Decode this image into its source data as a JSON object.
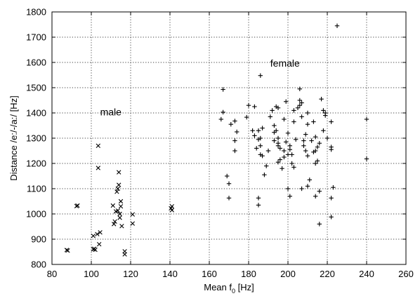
{
  "chart_data": {
    "type": "scatter",
    "title": "",
    "xlabel": "Mean f",
    "xlabel_sub": "0",
    "xlabel_unit": " [Hz]",
    "ylabel": "Distance /e:/-/a:/ [Hz]",
    "xlim": [
      80,
      260
    ],
    "ylim": [
      800,
      1800
    ],
    "xticks": [
      80,
      100,
      120,
      140,
      160,
      180,
      200,
      220,
      240,
      260
    ],
    "yticks": [
      800,
      900,
      1000,
      1100,
      1200,
      1300,
      1400,
      1500,
      1600,
      1700,
      1800
    ],
    "grid": true,
    "annotations": [
      {
        "text": "male",
        "x": 104.5,
        "y": 1390
      },
      {
        "text": "female",
        "x": 191,
        "y": 1583
      }
    ],
    "series": [
      {
        "name": "male",
        "marker": "x",
        "points": [
          [
            88,
            855
          ],
          [
            87.5,
            857
          ],
          [
            93,
            1033
          ],
          [
            92.5,
            1031
          ],
          [
            101,
            860
          ],
          [
            101.5,
            862
          ],
          [
            102,
            858
          ],
          [
            101,
            913
          ],
          [
            103,
            920
          ],
          [
            103.5,
            1270
          ],
          [
            103.5,
            1182
          ],
          [
            104,
            880
          ],
          [
            104.5,
            927
          ],
          [
            111,
            1033
          ],
          [
            111.5,
            960
          ],
          [
            112,
            970
          ],
          [
            112.5,
            1010
          ],
          [
            113,
            1088
          ],
          [
            113.5,
            1013
          ],
          [
            113.5,
            1100
          ],
          [
            114,
            1115
          ],
          [
            114,
            1165
          ],
          [
            114.5,
            1000
          ],
          [
            114.5,
            985
          ],
          [
            115,
            1050
          ],
          [
            115,
            1030
          ],
          [
            115.5,
            952
          ],
          [
            117,
            840
          ],
          [
            117,
            852
          ],
          [
            121,
            962
          ],
          [
            121,
            998
          ],
          [
            141,
            1030
          ],
          [
            141,
            1015
          ],
          [
            140.5,
            1022
          ]
        ]
      },
      {
        "name": "female",
        "marker": "+",
        "points": [
          [
            225,
            1745
          ],
          [
            186,
            1548
          ],
          [
            166,
            1375
          ],
          [
            167,
            1493
          ],
          [
            167,
            1403
          ],
          [
            169,
            1150
          ],
          [
            170,
            1120
          ],
          [
            170,
            1063
          ],
          [
            171,
            1355
          ],
          [
            173,
            1368
          ],
          [
            173,
            1290
          ],
          [
            173,
            1250
          ],
          [
            174,
            1325
          ],
          [
            179,
            1383
          ],
          [
            180,
            1430
          ],
          [
            182,
            1330
          ],
          [
            183,
            1425
          ],
          [
            183,
            1310
          ],
          [
            184,
            1260
          ],
          [
            185,
            1295
          ],
          [
            185,
            1330
          ],
          [
            185,
            1063
          ],
          [
            185,
            1035
          ],
          [
            186,
            1300
          ],
          [
            186,
            1270
          ],
          [
            186,
            1235
          ],
          [
            187,
            1340
          ],
          [
            187,
            1230
          ],
          [
            188,
            1155
          ],
          [
            189,
            1190
          ],
          [
            190,
            1250
          ],
          [
            191,
            1385
          ],
          [
            192,
            1410
          ],
          [
            193,
            1350
          ],
          [
            193,
            1290
          ],
          [
            193,
            1323
          ],
          [
            194,
            1425
          ],
          [
            194,
            1330
          ],
          [
            195,
            1300
          ],
          [
            195,
            1420
          ],
          [
            195,
            1280
          ],
          [
            195,
            1270
          ],
          [
            195,
            1205
          ],
          [
            196,
            1215
          ],
          [
            196,
            1260
          ],
          [
            197,
            1180
          ],
          [
            198,
            1225
          ],
          [
            198,
            1375
          ],
          [
            198,
            1250
          ],
          [
            199,
            1445
          ],
          [
            199,
            1285
          ],
          [
            200,
            1320
          ],
          [
            200,
            1235
          ],
          [
            200,
            1100
          ],
          [
            201,
            1270
          ],
          [
            201,
            1255
          ],
          [
            201,
            1070
          ],
          [
            202,
            1235
          ],
          [
            202,
            1200
          ],
          [
            203,
            1410
          ],
          [
            203,
            1365
          ],
          [
            203,
            1185
          ],
          [
            204,
            1295
          ],
          [
            205,
            1420
          ],
          [
            206,
            1450
          ],
          [
            206,
            1495
          ],
          [
            206,
            1430
          ],
          [
            207,
            1440
          ],
          [
            207,
            1385
          ],
          [
            207,
            1100
          ],
          [
            208,
            1290
          ],
          [
            208,
            1270
          ],
          [
            209,
            1315
          ],
          [
            209,
            1250
          ],
          [
            210,
            1230
          ],
          [
            210,
            1400
          ],
          [
            210,
            1355
          ],
          [
            210,
            1110
          ],
          [
            211,
            1135
          ],
          [
            212,
            1290
          ],
          [
            213,
            1245
          ],
          [
            213,
            1365
          ],
          [
            214,
            1250
          ],
          [
            214,
            1200
          ],
          [
            214,
            1070
          ],
          [
            214,
            1305
          ],
          [
            215,
            1210
          ],
          [
            215,
            1265
          ],
          [
            216,
            1090
          ],
          [
            216,
            960
          ],
          [
            216,
            1280
          ],
          [
            217,
            1455
          ],
          [
            218,
            1410
          ],
          [
            218,
            1330
          ],
          [
            219,
            1390
          ],
          [
            219,
            1400
          ],
          [
            220,
            1300
          ],
          [
            222,
            1265
          ],
          [
            222,
            1255
          ],
          [
            222,
            1063
          ],
          [
            222,
            988
          ],
          [
            222,
            1365
          ],
          [
            223,
            1105
          ],
          [
            240,
            1375
          ],
          [
            240,
            1218
          ]
        ]
      }
    ]
  }
}
